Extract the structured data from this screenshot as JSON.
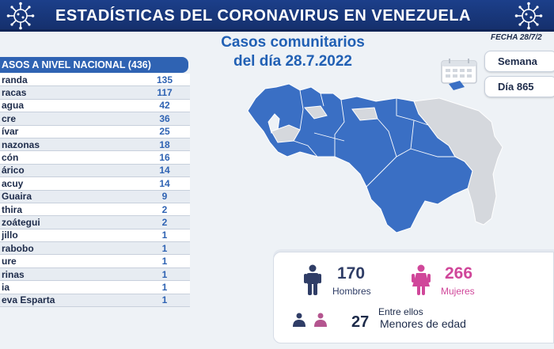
{
  "header": {
    "title": "ESTADÍSTICAS DEL CORONAVIRUS EN VENEZUELA",
    "date": "FECHA 28/7/2"
  },
  "headline": {
    "line1": "Casos comunitarios",
    "line2": "del día 28.7.2022"
  },
  "table": {
    "header": "ASOS A NIVEL NACIONAL  (436)",
    "rows": [
      {
        "name": "randa",
        "count": "135"
      },
      {
        "name": "racas",
        "count": "117"
      },
      {
        "name": "agua",
        "count": "42"
      },
      {
        "name": "cre",
        "count": "36"
      },
      {
        "name": "ívar",
        "count": "25"
      },
      {
        "name": "nazonas",
        "count": "18"
      },
      {
        "name": "cón",
        "count": "16"
      },
      {
        "name": "árico",
        "count": "14"
      },
      {
        "name": "acuy",
        "count": "14"
      },
      {
        "name": "Guaira",
        "count": "9"
      },
      {
        "name": "thira",
        "count": "2"
      },
      {
        "name": "zoátegui",
        "count": "2"
      },
      {
        "name": "jillo",
        "count": "1"
      },
      {
        "name": "rabobo",
        "count": "1"
      },
      {
        "name": "ure",
        "count": "1"
      },
      {
        "name": "rinas",
        "count": "1"
      },
      {
        "name": "ia",
        "count": "1"
      },
      {
        "name": "eva Esparta",
        "count": "1"
      }
    ]
  },
  "summary": {
    "week_label": "Semana",
    "day_label": "Día 865"
  },
  "stats": {
    "men_count": "170",
    "men_label": "Hombres",
    "women_count": "266",
    "women_label": "Mujeres",
    "between_label": "Entre ellos",
    "minors_count": "27",
    "minors_label": "Menores de edad"
  },
  "colors": {
    "header_bg": "#1c3f8a",
    "accent_blue": "#2f63b3",
    "women_pink": "#d0479a",
    "map_blue": "#3a6fc4",
    "map_gray": "#d5d8dd"
  },
  "icons": [
    "virus-icon",
    "calendar-icon",
    "man-icon",
    "woman-icon",
    "children-icon"
  ]
}
